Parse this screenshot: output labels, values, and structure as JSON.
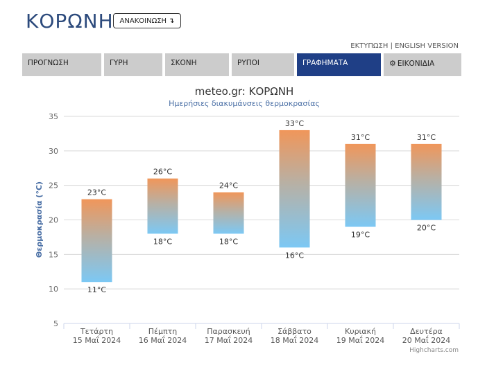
{
  "header": {
    "title": "ΚΟΡΩΝΗ",
    "announce_label": "ΑΝΑΚΟΙΝΩΣΗ",
    "print_link": "ΕΚΤΥΠΩΣΗ",
    "separator": "|",
    "english_link": "ENGLISH VERSION"
  },
  "nav": {
    "tabs": [
      {
        "label": "ΠΡΟΓΝΩΣΗ"
      },
      {
        "label": "ΓΥΡΗ"
      },
      {
        "label": "ΣΚΟΝΗ"
      },
      {
        "label": "ΡΥΠΟΙ"
      },
      {
        "label": "ΓΡΑΦΗΜΑΤΑ",
        "active": true
      },
      {
        "label": "ΕΙΚΟΝΙΔΙΑ",
        "icon": "gear-icon"
      }
    ]
  },
  "chart_data": {
    "type": "bar",
    "subtype": "columnrange",
    "title": "meteo.gr: ΚΟΡΩΝΗ",
    "subtitle": "Ημερήσιες διακυμάνσεις θερμοκρασίας",
    "xlabel": "",
    "ylabel": "Θερμοκρασία (°C)",
    "ylim": [
      5,
      35
    ],
    "yticks": [
      5,
      10,
      15,
      20,
      25,
      30,
      35
    ],
    "grid": true,
    "legend": "none",
    "categories": [
      [
        "Τετάρτη",
        "15 Μαΐ 2024"
      ],
      [
        "Πέμπτη",
        "16 Μαΐ 2024"
      ],
      [
        "Παρασκευή",
        "17 Μαΐ 2024"
      ],
      [
        "Σάββατο",
        "18 Μαΐ 2024"
      ],
      [
        "Κυριακή",
        "19 Μαΐ 2024"
      ],
      [
        "Δευτέρα",
        "20 Μαΐ 2024"
      ]
    ],
    "low": [
      11,
      18,
      18,
      16,
      19,
      20
    ],
    "high": [
      23,
      26,
      24,
      33,
      31,
      31
    ],
    "low_labels": [
      "11°C",
      "18°C",
      "18°C",
      "16°C",
      "19°C",
      "20°C"
    ],
    "high_labels": [
      "23°C",
      "26°C",
      "24°C",
      "33°C",
      "31°C",
      "31°C"
    ],
    "colors": {
      "warm": "#f0965a",
      "cold": "#7cc8f4",
      "title": "#333333",
      "subtitle": "#4a6fa5",
      "axis_title": "#4a6fa5"
    },
    "credits": "Highcharts.com"
  }
}
